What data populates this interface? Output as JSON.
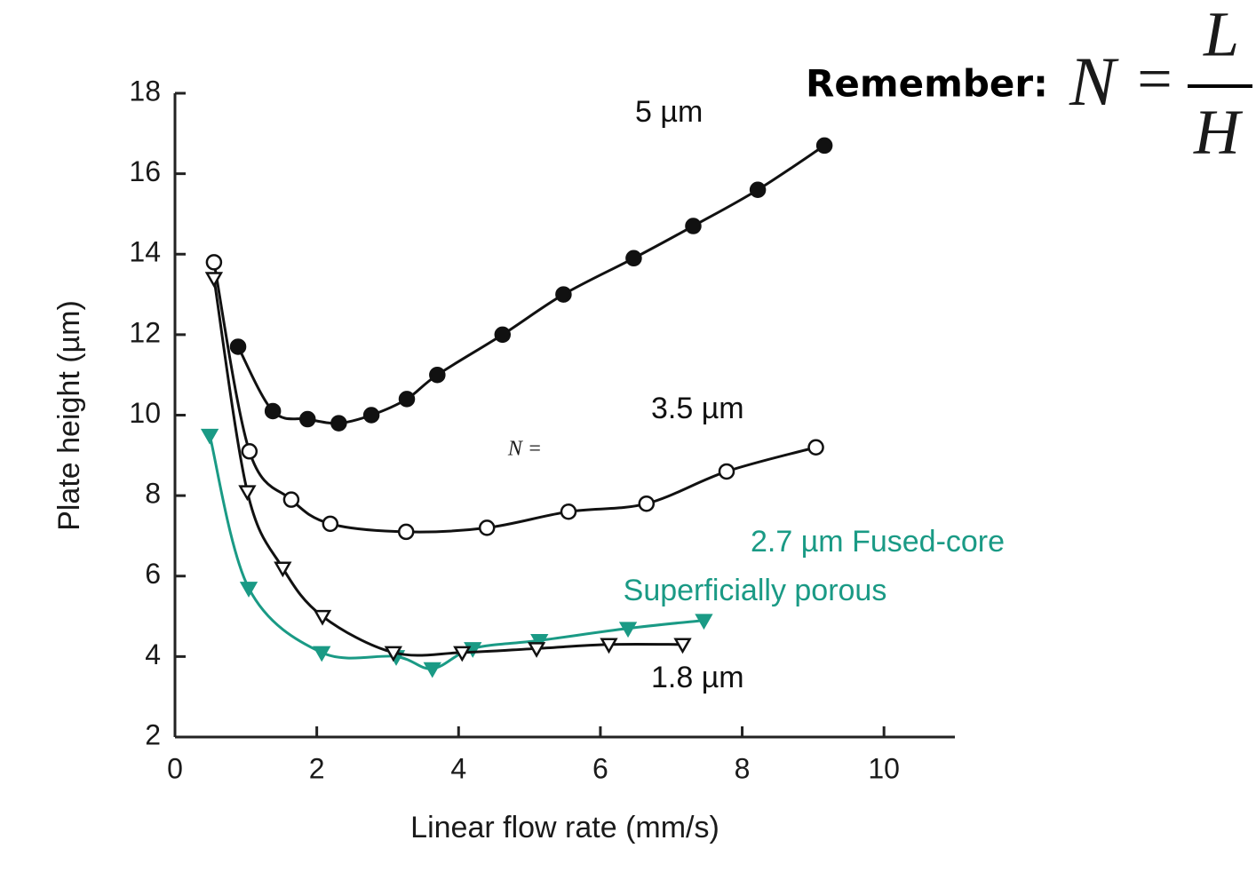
{
  "chart_data": {
    "type": "line",
    "xlabel": "Linear flow rate (mm/s)",
    "ylabel": "Plate height (µm)",
    "xlim": [
      0,
      11
    ],
    "ylim": [
      2,
      18
    ],
    "xticks": [
      0,
      2,
      4,
      6,
      8,
      10
    ],
    "yticks": [
      2,
      4,
      6,
      8,
      10,
      12,
      14,
      16,
      18
    ],
    "series": [
      {
        "name": "5 µm",
        "color": "#111111",
        "marker": "filled-circle",
        "x": [
          0.89,
          1.38,
          1.87,
          2.31,
          2.77,
          3.27,
          3.7,
          4.62,
          5.48,
          6.47,
          7.31,
          8.22,
          9.16
        ],
        "values": [
          11.7,
          10.1,
          9.9,
          9.8,
          10.0,
          10.4,
          11.0,
          12.0,
          13.0,
          13.9,
          14.7,
          15.6,
          16.7
        ]
      },
      {
        "name": "3.5 µm",
        "color": "#111111",
        "marker": "open-circle",
        "x": [
          0.55,
          1.05,
          1.64,
          2.19,
          3.26,
          4.4,
          5.55,
          6.65,
          7.78,
          9.04
        ],
        "values": [
          13.8,
          9.1,
          7.9,
          7.3,
          7.1,
          7.2,
          7.6,
          7.8,
          8.6,
          9.2
        ]
      },
      {
        "name": "2.7 µm Fused-core",
        "color": "#1a9a85",
        "marker": "filled-triangle",
        "x": [
          0.49,
          1.04,
          2.07,
          3.12,
          3.63,
          4.2,
          5.14,
          6.39,
          7.46
        ],
        "values": [
          9.5,
          5.7,
          4.1,
          4.0,
          3.7,
          4.2,
          4.4,
          4.7,
          4.9
        ]
      },
      {
        "name": "1.8 µm",
        "color": "#111111",
        "marker": "open-triangle",
        "x": [
          0.55,
          1.02,
          1.52,
          2.08,
          3.08,
          4.05,
          5.1,
          6.12,
          7.16
        ],
        "values": [
          13.4,
          8.1,
          6.2,
          5.0,
          4.1,
          4.1,
          4.2,
          4.3,
          4.3
        ]
      }
    ]
  },
  "annotations": [
    "Superficially porous",
    "Remember:",
    "N",
    "=",
    "L",
    "H",
    "N ="
  ]
}
